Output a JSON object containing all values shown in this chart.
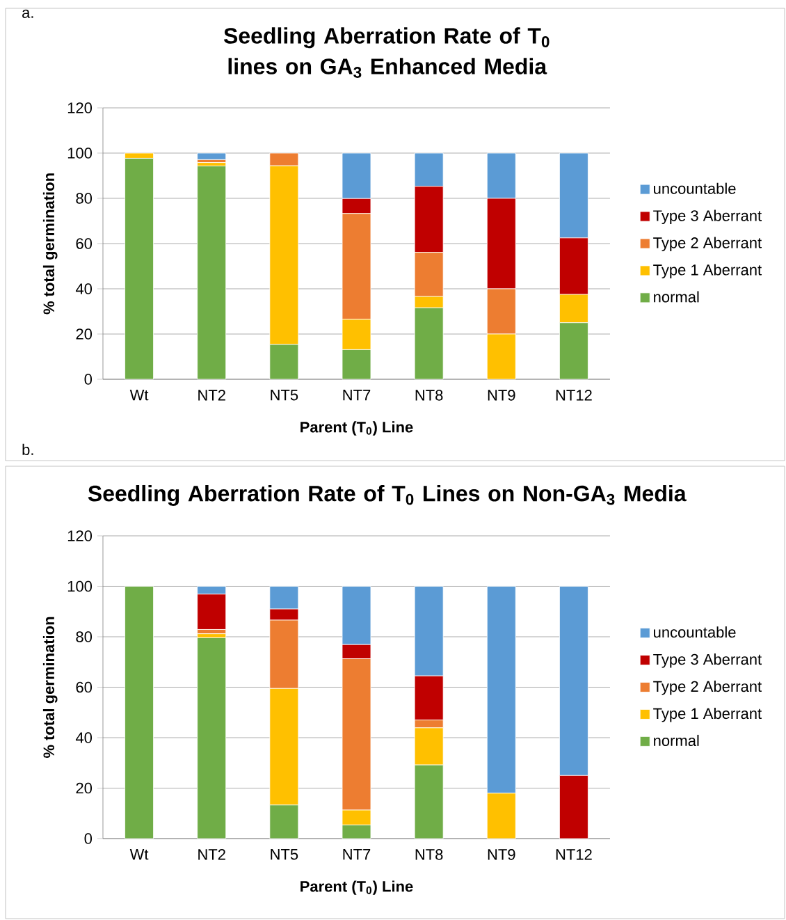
{
  "chart_data": [
    {
      "type": "bar",
      "stacked": true,
      "title": "Seedling Aberration Rate of T$_{0}$ lines on GA$_{3}$ Enhanced Media",
      "xlabel": "Parent (T$_{0}$) Line",
      "ylabel": "% total germination",
      "annotations": [
        "a."
      ],
      "categories": [
        "Wt",
        "NT2",
        "NT5",
        "NT7",
        "NT8",
        "NT9",
        "NT12"
      ],
      "series": [
        {
          "name": "normal",
          "color": "#70ad47",
          "values": [
            97.7,
            94.3,
            15.4,
            13.1,
            31.6,
            0,
            25
          ]
        },
        {
          "name": "Type 1 Aberrant",
          "color": "#ffc000",
          "values": [
            2.3,
            1.5,
            79,
            13.4,
            5,
            20,
            12.5
          ]
        },
        {
          "name": "Type 2 Aberrant",
          "color": "#ed7d31",
          "values": [
            0,
            1.3,
            5.6,
            46.8,
            19.5,
            20,
            0
          ]
        },
        {
          "name": "Type 3 Aberrant",
          "color": "#c00000",
          "values": [
            0,
            0,
            0,
            6.6,
            29.2,
            40,
            25
          ]
        },
        {
          "name": "uncountable",
          "color": "#5b9bd5",
          "values": [
            0,
            2.9,
            0,
            20.1,
            14.7,
            20,
            37.5
          ]
        }
      ],
      "ylim": [
        0,
        120
      ],
      "yticks": [
        0,
        20,
        40,
        60,
        80,
        100,
        120
      ],
      "grid": "y",
      "legend": "right"
    },
    {
      "type": "bar",
      "stacked": true,
      "title": "Seedling Aberration Rate of T$_{0}$ Lines on Non-GA$_{3}$ Media",
      "xlabel": "Parent (T$_{0}$) Line",
      "ylabel": "% total germination",
      "annotations": [
        "b."
      ],
      "categories": [
        "Wt",
        "NT2",
        "NT5",
        "NT7",
        "NT8",
        "NT9",
        "NT12"
      ],
      "series": [
        {
          "name": "normal",
          "color": "#70ad47",
          "values": [
            100,
            79.6,
            13.3,
            5.4,
            29.2,
            0,
            0
          ]
        },
        {
          "name": "Type 1 Aberrant",
          "color": "#ffc000",
          "values": [
            0,
            1.6,
            46.2,
            5.9,
            14.7,
            18,
            0
          ]
        },
        {
          "name": "Type 2 Aberrant",
          "color": "#ed7d31",
          "values": [
            0,
            1.7,
            27.1,
            60,
            3.1,
            0,
            0
          ]
        },
        {
          "name": "Type 3 Aberrant",
          "color": "#c00000",
          "values": [
            0,
            14,
            4.4,
            5.6,
            17.5,
            0,
            25
          ]
        },
        {
          "name": "uncountable",
          "color": "#5b9bd5",
          "values": [
            0,
            3.1,
            9,
            23.1,
            35.5,
            82,
            75
          ]
        }
      ],
      "ylim": [
        0,
        120
      ],
      "yticks": [
        0,
        20,
        40,
        60,
        80,
        100,
        120
      ],
      "grid": "y",
      "legend": "right"
    }
  ]
}
